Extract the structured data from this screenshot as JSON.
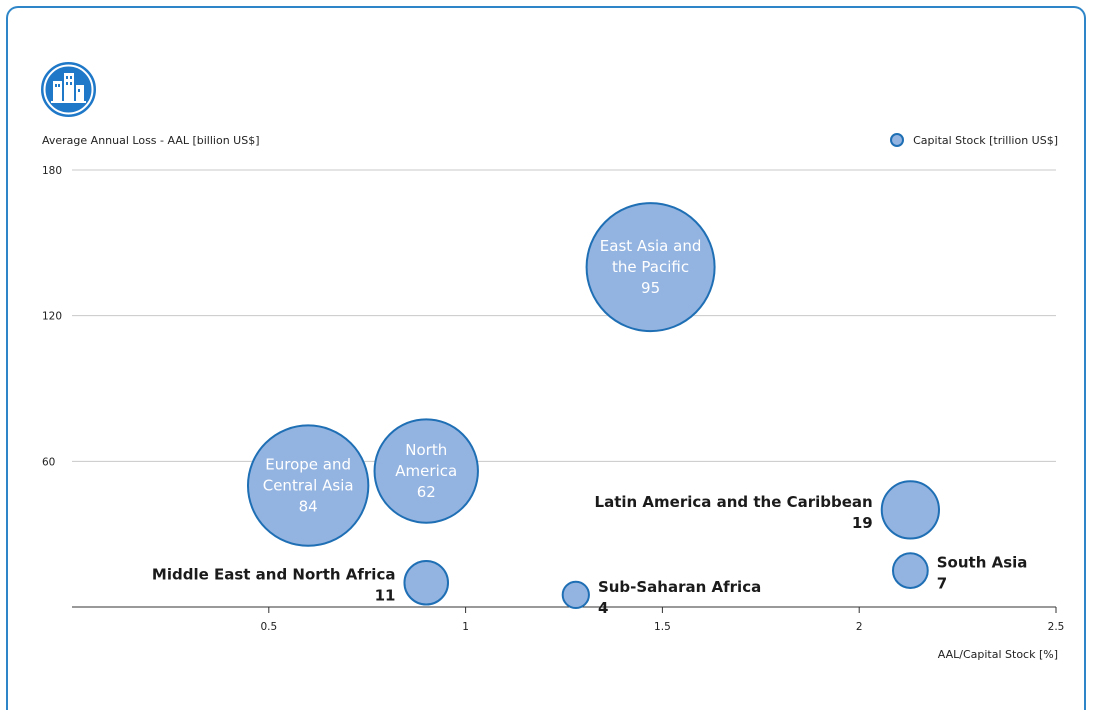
{
  "colors": {
    "border": "#2e86c8",
    "bubble_fill": "#93b3e0",
    "bubble_stroke": "#1f6fb5",
    "gridline": "#c8c8c8",
    "axis": "#333333"
  },
  "icon": "city-buildings-icon",
  "chart_data": {
    "type": "scatter",
    "title": "",
    "xlabel": "AAL/Capital Stock [%]",
    "ylabel": "Average Annual Loss - AAL [billion US$]",
    "legend": {
      "label": "Capital Stock [trillion US$]",
      "placement": "top-right"
    },
    "xlim": [
      0,
      2.5
    ],
    "ylim": [
      0,
      180
    ],
    "xticks": [
      0.5,
      1,
      1.5,
      2,
      2.5
    ],
    "xtick_labels": [
      "0.5",
      "1",
      "1.5",
      "2",
      "2.5"
    ],
    "yticks": [
      60,
      120,
      180
    ],
    "ytick_labels": [
      "60",
      "120",
      "180"
    ],
    "grid": "horizontal",
    "points": [
      {
        "label": [
          "East Asia and",
          "the Pacific"
        ],
        "x": 1.47,
        "y": 140,
        "size": 95,
        "size_label": "95",
        "label_inside": true
      },
      {
        "label": [
          "Europe and",
          "Central Asia"
        ],
        "x": 0.6,
        "y": 50,
        "size": 84,
        "size_label": "84",
        "label_inside": true
      },
      {
        "label": [
          "North",
          "America"
        ],
        "x": 0.9,
        "y": 56,
        "size": 62,
        "size_label": "62",
        "label_inside": true
      },
      {
        "label": [
          "Latin America and the Caribbean"
        ],
        "x": 2.13,
        "y": 40,
        "size": 19,
        "size_label": "19",
        "label_inside": false,
        "label_side": "left"
      },
      {
        "label": [
          "South Asia"
        ],
        "x": 2.13,
        "y": 15,
        "size": 7,
        "size_label": "7",
        "label_inside": false,
        "label_side": "right"
      },
      {
        "label": [
          "Middle East and North Africa"
        ],
        "x": 0.9,
        "y": 10,
        "size": 11,
        "size_label": "11",
        "label_inside": false,
        "label_side": "left"
      },
      {
        "label": [
          "Sub-Saharan Africa"
        ],
        "x": 1.28,
        "y": 5,
        "size": 4,
        "size_label": "4",
        "label_inside": false,
        "label_side": "right"
      }
    ]
  }
}
